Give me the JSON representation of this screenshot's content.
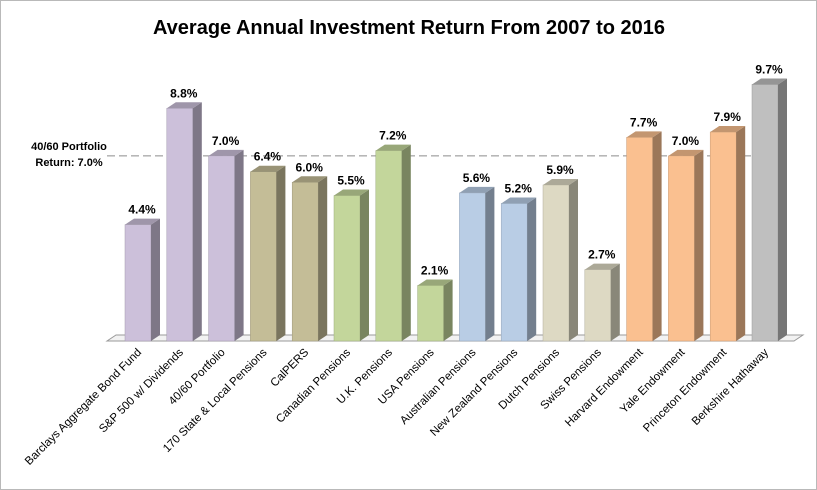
{
  "chart_data": {
    "type": "bar",
    "title": "Average Annual Investment Return From 2007 to 2016",
    "categories": [
      "Barclays Aggregate Bond Fund",
      "S&P 500 w/ Dividends",
      "40/60 Portfolio",
      "170 State & Local Pensions",
      "CalPERS",
      "Canadian Pensions",
      "U.K. Pensions",
      "USA Pensions",
      "Australian Pensions",
      "New Zealand Pensions",
      "Dutch Pensions",
      "Swiss Pensions",
      "Harvard Endowment",
      "Yale Endowment",
      "Princeton Endowment",
      "Berkshire Hathaway"
    ],
    "values": [
      4.4,
      8.8,
      7.0,
      6.4,
      6.0,
      5.5,
      7.2,
      2.1,
      5.6,
      5.2,
      5.9,
      2.7,
      7.7,
      7.0,
      7.9,
      9.7
    ],
    "value_labels": [
      "4.4%",
      "8.8%",
      "7.0%",
      "6.4%",
      "6.0%",
      "5.5%",
      "7.2%",
      "2.1%",
      "5.6%",
      "5.2%",
      "5.9%",
      "2.7%",
      "7.7%",
      "7.0%",
      "7.9%",
      "9.7%"
    ],
    "colors": [
      "#ccc0da",
      "#ccc0da",
      "#ccc0da",
      "#c4bd97",
      "#c4bd97",
      "#c3d69b",
      "#c3d69b",
      "#c3d69b",
      "#b9cde5",
      "#b9cde5",
      "#ddd9c3",
      "#ddd9c3",
      "#fac090",
      "#fac090",
      "#fac090",
      "#bfbfbf"
    ],
    "reference_line": {
      "value": 7.0,
      "label_lines": [
        "40/60 Portfolio",
        "Return: 7.0%"
      ],
      "style": "dashed"
    },
    "ylim": [
      0,
      10.7
    ],
    "grid": false,
    "legend": "none",
    "style": "3d-column"
  }
}
